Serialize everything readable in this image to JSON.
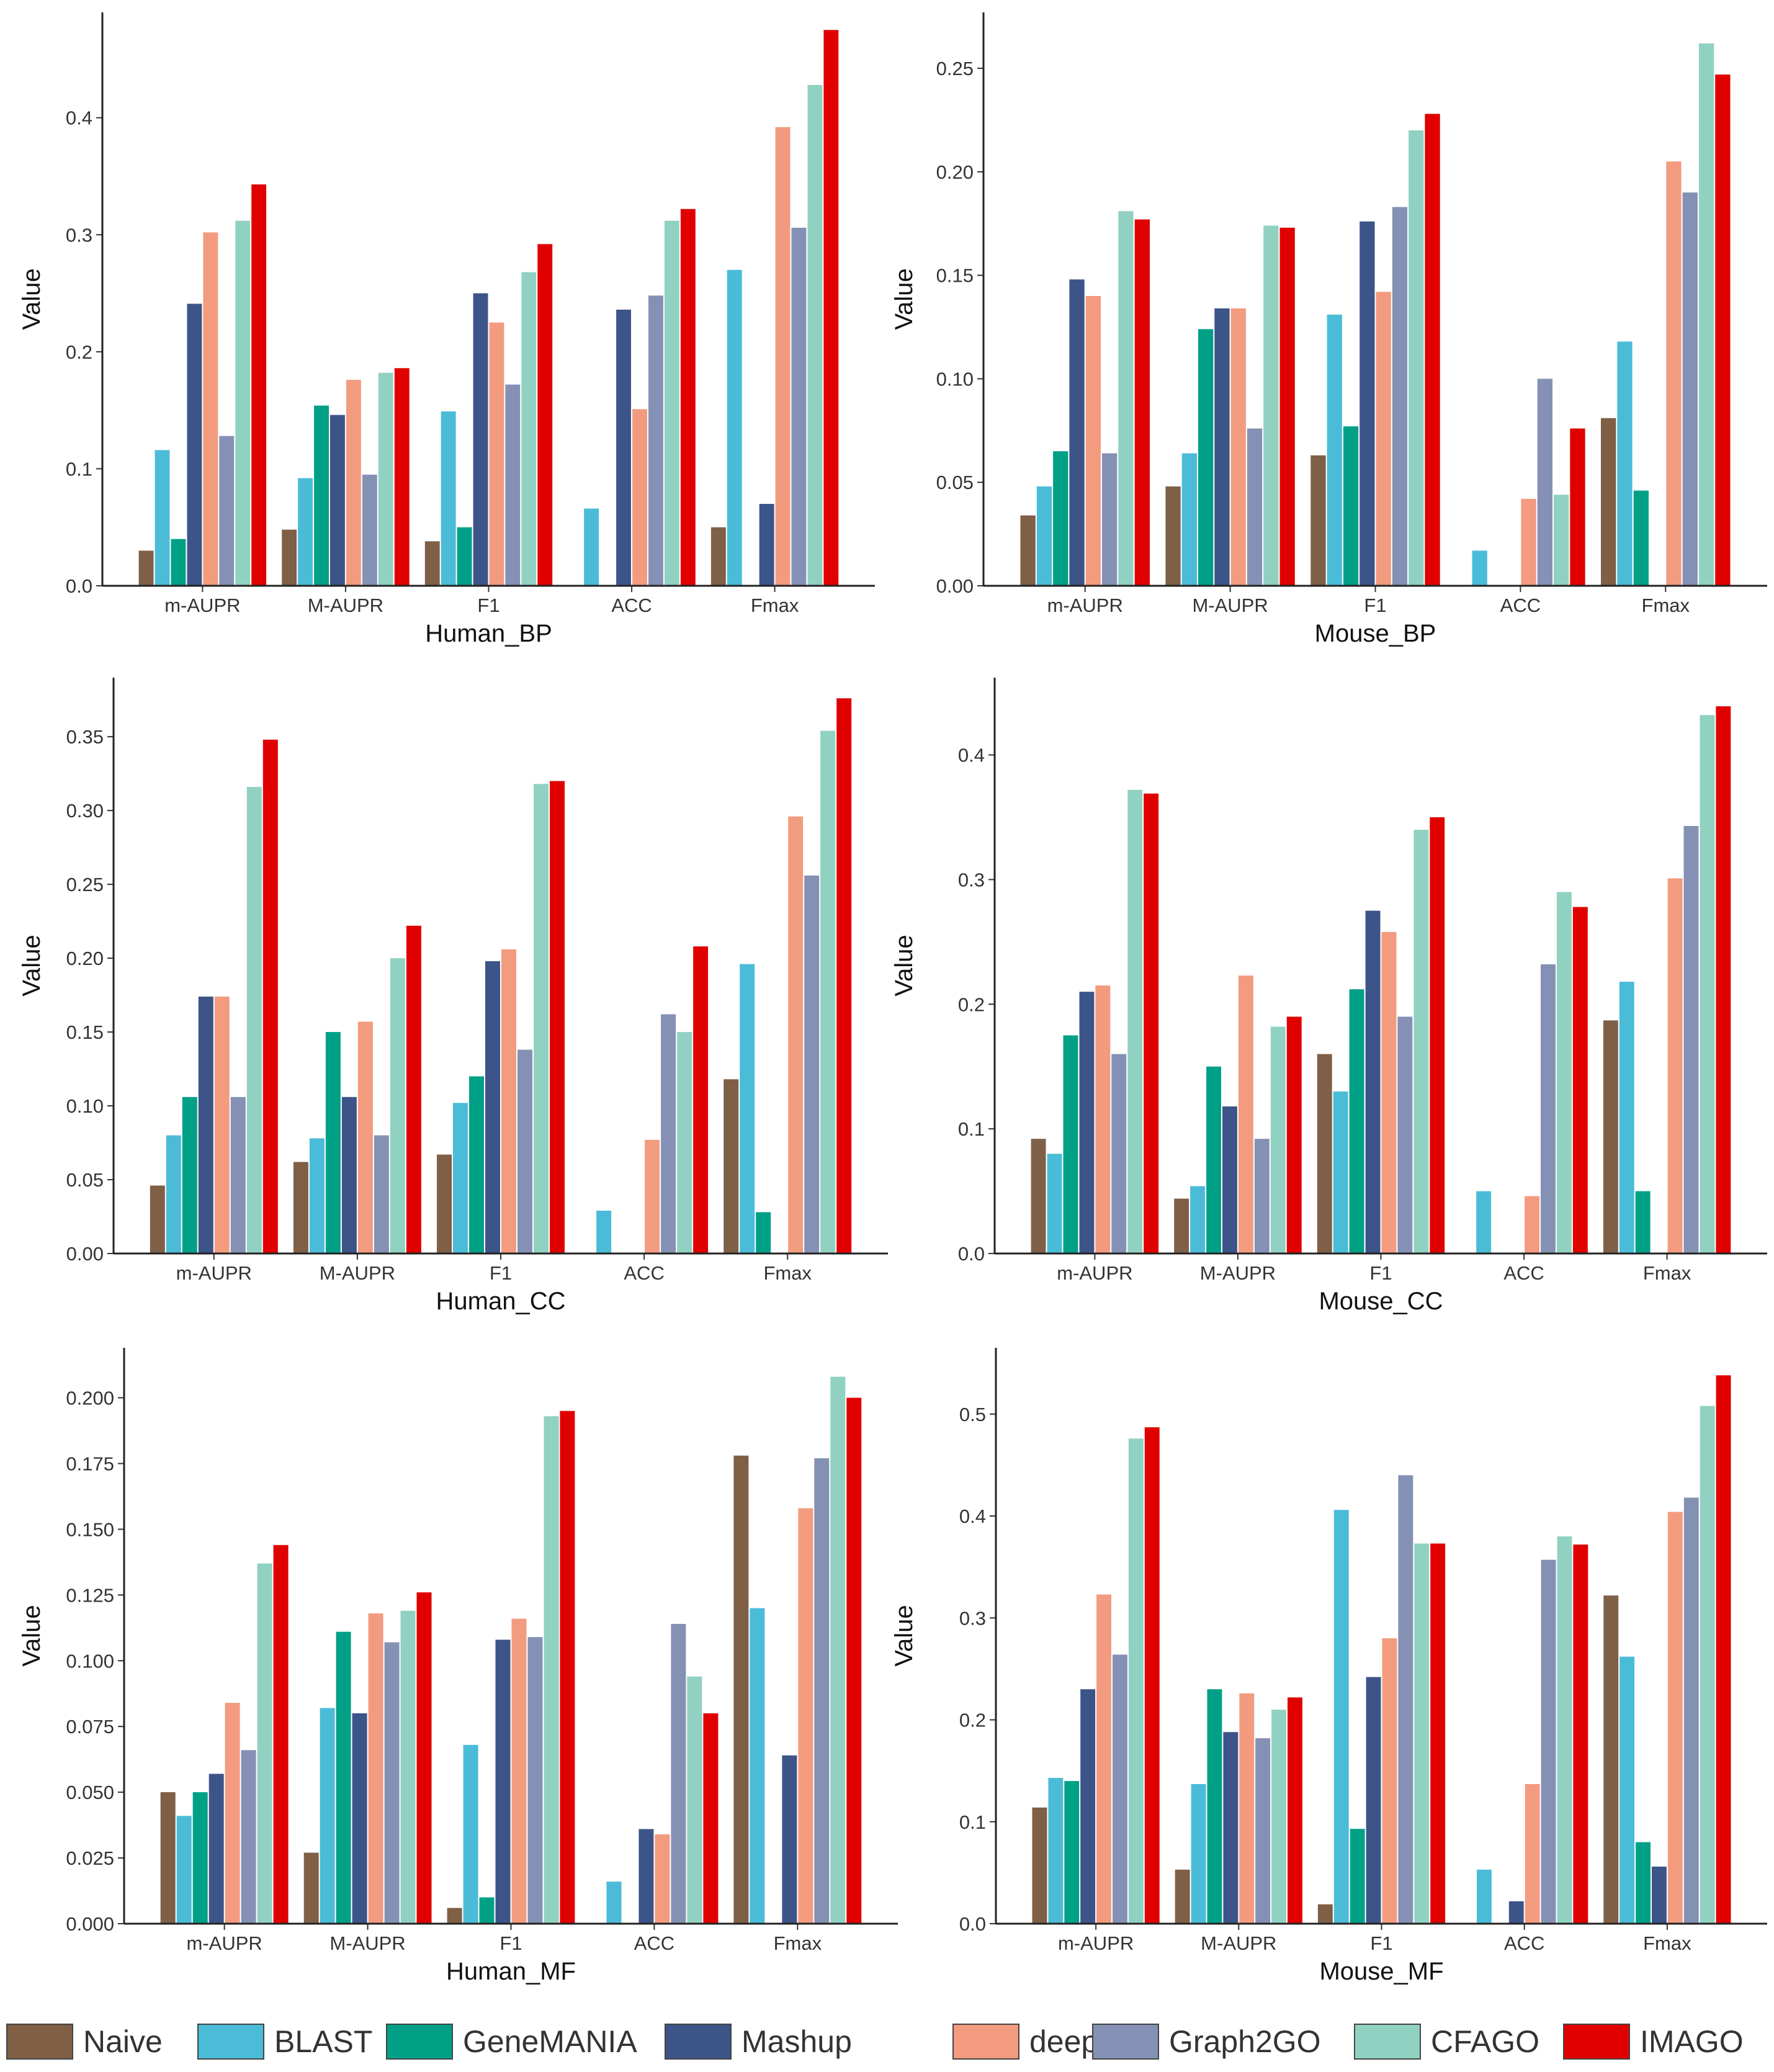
{
  "legend": {
    "position": "bottom",
    "items": [
      {
        "name": "Naive",
        "color": "#7F5F46"
      },
      {
        "name": "BLAST",
        "color": "#4BBCD8"
      },
      {
        "name": "GeneMANIA",
        "color": "#00A087"
      },
      {
        "name": "Mashup",
        "color": "#3C5488"
      },
      {
        "name": "deepNF",
        "color": "#F39B7F"
      },
      {
        "name": "Graph2GO",
        "color": "#8491B4"
      },
      {
        "name": "CFAGO",
        "color": "#91D1C2"
      },
      {
        "name": "IMAGO",
        "color": "#E00000"
      }
    ]
  },
  "chart_data": [
    {
      "type": "bar",
      "title": "Human_BP",
      "xlabel": "Human_BP",
      "ylabel": "Value",
      "categories": [
        "m-AUPR",
        "M-AUPR",
        "F1",
        "ACC",
        "Fmax"
      ],
      "ylim": [
        0,
        0.49
      ],
      "yticks": [
        0.0,
        0.1,
        0.2,
        0.3,
        0.4
      ],
      "tick_decimals": 1,
      "series": [
        {
          "name": "Naive",
          "values": [
            0.03,
            0.048,
            0.038,
            0,
            0.05
          ]
        },
        {
          "name": "BLAST",
          "values": [
            0.116,
            0.092,
            0.149,
            0.066,
            0.27
          ]
        },
        {
          "name": "GeneMANIA",
          "values": [
            0.04,
            0.154,
            0.05,
            0,
            0
          ]
        },
        {
          "name": "Mashup",
          "values": [
            0.241,
            0.146,
            0.25,
            0.236,
            0.07
          ]
        },
        {
          "name": "deepNF",
          "values": [
            0.302,
            0.176,
            0.225,
            0.151,
            0.392
          ]
        },
        {
          "name": "Graph2GO",
          "values": [
            0.128,
            0.095,
            0.172,
            0.248,
            0.306
          ]
        },
        {
          "name": "CFAGO",
          "values": [
            0.312,
            0.182,
            0.268,
            0.312,
            0.428
          ]
        },
        {
          "name": "IMAGO",
          "values": [
            0.343,
            0.186,
            0.292,
            0.322,
            0.475
          ]
        }
      ]
    },
    {
      "type": "bar",
      "title": "Mouse_BP",
      "xlabel": "Mouse_BP",
      "ylabel": "Value",
      "categories": [
        "m-AUPR",
        "M-AUPR",
        "F1",
        "ACC",
        "Fmax"
      ],
      "ylim": [
        0,
        0.277
      ],
      "yticks": [
        0.0,
        0.05,
        0.1,
        0.15,
        0.2,
        0.25
      ],
      "tick_decimals": 2,
      "series": [
        {
          "name": "Naive",
          "values": [
            0.034,
            0.048,
            0.063,
            0,
            0.081
          ]
        },
        {
          "name": "BLAST",
          "values": [
            0.048,
            0.064,
            0.131,
            0.017,
            0.118
          ]
        },
        {
          "name": "GeneMANIA",
          "values": [
            0.065,
            0.124,
            0.077,
            0,
            0.046
          ]
        },
        {
          "name": "Mashup",
          "values": [
            0.148,
            0.134,
            0.176,
            0,
            0
          ]
        },
        {
          "name": "deepNF",
          "values": [
            0.14,
            0.134,
            0.142,
            0.042,
            0.205
          ]
        },
        {
          "name": "Graph2GO",
          "values": [
            0.064,
            0.076,
            0.183,
            0.1,
            0.19
          ]
        },
        {
          "name": "CFAGO",
          "values": [
            0.181,
            0.174,
            0.22,
            0.044,
            0.262
          ]
        },
        {
          "name": "IMAGO",
          "values": [
            0.177,
            0.173,
            0.228,
            0.076,
            0.247
          ]
        }
      ]
    },
    {
      "type": "bar",
      "title": "Human_CC",
      "xlabel": "Human_CC",
      "ylabel": "Value",
      "categories": [
        "m-AUPR",
        "M-AUPR",
        "F1",
        "ACC",
        "Fmax"
      ],
      "ylim": [
        0,
        0.39
      ],
      "yticks": [
        0.0,
        0.05,
        0.1,
        0.15,
        0.2,
        0.25,
        0.3,
        0.35
      ],
      "tick_decimals": 2,
      "series": [
        {
          "name": "Naive",
          "values": [
            0.046,
            0.062,
            0.067,
            0,
            0.118
          ]
        },
        {
          "name": "BLAST",
          "values": [
            0.08,
            0.078,
            0.102,
            0.029,
            0.196
          ]
        },
        {
          "name": "GeneMANIA",
          "values": [
            0.106,
            0.15,
            0.12,
            0,
            0.028
          ]
        },
        {
          "name": "Mashup",
          "values": [
            0.174,
            0.106,
            0.198,
            0,
            0
          ]
        },
        {
          "name": "deepNF",
          "values": [
            0.174,
            0.157,
            0.206,
            0.077,
            0.296
          ]
        },
        {
          "name": "Graph2GO",
          "values": [
            0.106,
            0.08,
            0.138,
            0.162,
            0.256
          ]
        },
        {
          "name": "CFAGO",
          "values": [
            0.316,
            0.2,
            0.318,
            0.15,
            0.354
          ]
        },
        {
          "name": "IMAGO",
          "values": [
            0.348,
            0.222,
            0.32,
            0.208,
            0.376
          ]
        }
      ]
    },
    {
      "type": "bar",
      "title": "Mouse_CC",
      "xlabel": "Mouse_CC",
      "ylabel": "Value",
      "categories": [
        "m-AUPR",
        "M-AUPR",
        "F1",
        "ACC",
        "Fmax"
      ],
      "ylim": [
        0,
        0.462
      ],
      "yticks": [
        0.0,
        0.1,
        0.2,
        0.3,
        0.4
      ],
      "tick_decimals": 1,
      "series": [
        {
          "name": "Naive",
          "values": [
            0.092,
            0.044,
            0.16,
            0,
            0.187
          ]
        },
        {
          "name": "BLAST",
          "values": [
            0.08,
            0.054,
            0.13,
            0.05,
            0.218
          ]
        },
        {
          "name": "GeneMANIA",
          "values": [
            0.175,
            0.15,
            0.212,
            0,
            0.05
          ]
        },
        {
          "name": "Mashup",
          "values": [
            0.21,
            0.118,
            0.275,
            0,
            0
          ]
        },
        {
          "name": "deepNF",
          "values": [
            0.215,
            0.223,
            0.258,
            0.046,
            0.301
          ]
        },
        {
          "name": "Graph2GO",
          "values": [
            0.16,
            0.092,
            0.19,
            0.232,
            0.343
          ]
        },
        {
          "name": "CFAGO",
          "values": [
            0.372,
            0.182,
            0.34,
            0.29,
            0.432
          ]
        },
        {
          "name": "IMAGO",
          "values": [
            0.369,
            0.19,
            0.35,
            0.278,
            0.439
          ]
        }
      ]
    },
    {
      "type": "bar",
      "title": "Human_MF",
      "xlabel": "Human_MF",
      "ylabel": "Value",
      "categories": [
        "m-AUPR",
        "M-AUPR",
        "F1",
        "ACC",
        "Fmax"
      ],
      "ylim": [
        0,
        0.219
      ],
      "yticks": [
        0.0,
        0.025,
        0.05,
        0.075,
        0.1,
        0.125,
        0.15,
        0.175,
        0.2
      ],
      "tick_decimals": 3,
      "series": [
        {
          "name": "Naive",
          "values": [
            0.05,
            0.027,
            0.006,
            0,
            0.178
          ]
        },
        {
          "name": "BLAST",
          "values": [
            0.041,
            0.082,
            0.068,
            0.016,
            0.12
          ]
        },
        {
          "name": "GeneMANIA",
          "values": [
            0.05,
            0.111,
            0.01,
            0,
            0
          ]
        },
        {
          "name": "Mashup",
          "values": [
            0.057,
            0.08,
            0.108,
            0.036,
            0.064
          ]
        },
        {
          "name": "deepNF",
          "values": [
            0.084,
            0.118,
            0.116,
            0.034,
            0.158
          ]
        },
        {
          "name": "Graph2GO",
          "values": [
            0.066,
            0.107,
            0.109,
            0.114,
            0.177
          ]
        },
        {
          "name": "CFAGO",
          "values": [
            0.137,
            0.119,
            0.193,
            0.094,
            0.208
          ]
        },
        {
          "name": "IMAGO",
          "values": [
            0.144,
            0.126,
            0.195,
            0.08,
            0.2
          ]
        }
      ]
    },
    {
      "type": "bar",
      "title": "Mouse_MF",
      "xlabel": "Mouse_MF",
      "ylabel": "Value",
      "categories": [
        "m-AUPR",
        "M-AUPR",
        "F1",
        "ACC",
        "Fmax"
      ],
      "ylim": [
        0,
        0.565
      ],
      "yticks": [
        0.0,
        0.1,
        0.2,
        0.3,
        0.4,
        0.5
      ],
      "tick_decimals": 1,
      "series": [
        {
          "name": "Naive",
          "values": [
            0.114,
            0.053,
            0.019,
            0,
            0.322
          ]
        },
        {
          "name": "BLAST",
          "values": [
            0.143,
            0.137,
            0.406,
            0.053,
            0.262
          ]
        },
        {
          "name": "GeneMANIA",
          "values": [
            0.14,
            0.23,
            0.093,
            0,
            0.08
          ]
        },
        {
          "name": "Mashup",
          "values": [
            0.23,
            0.188,
            0.242,
            0.022,
            0.056
          ]
        },
        {
          "name": "deepNF",
          "values": [
            0.323,
            0.226,
            0.28,
            0.137,
            0.404
          ]
        },
        {
          "name": "Graph2GO",
          "values": [
            0.264,
            0.182,
            0.44,
            0.357,
            0.418
          ]
        },
        {
          "name": "CFAGO",
          "values": [
            0.476,
            0.21,
            0.373,
            0.38,
            0.508
          ]
        },
        {
          "name": "IMAGO",
          "values": [
            0.487,
            0.222,
            0.373,
            0.372,
            0.538
          ]
        }
      ]
    }
  ]
}
